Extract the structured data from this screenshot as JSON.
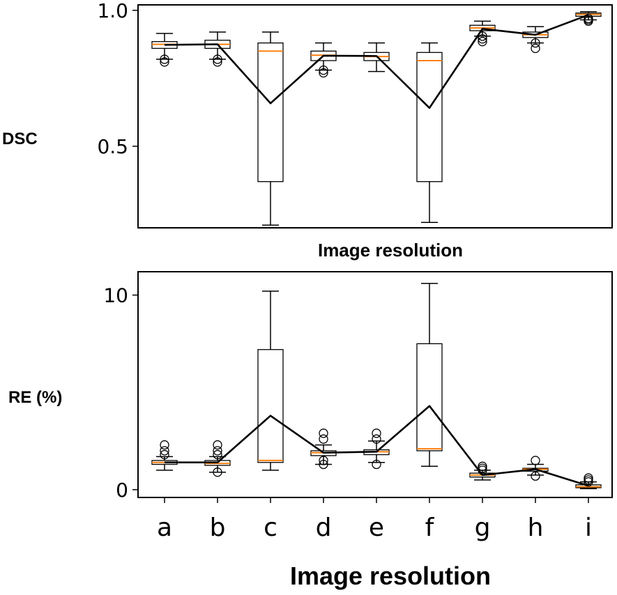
{
  "chart_data": [
    {
      "type": "box",
      "ylabel": "DSC",
      "xlabel": "Image resolution",
      "categories": [
        "a",
        "b",
        "c",
        "d",
        "e",
        "f",
        "g",
        "h",
        "i"
      ],
      "ylim": [
        0.2,
        1.02
      ],
      "yticks": [
        0.5,
        1.0
      ],
      "ytick_labels": [
        "0.5",
        "1.0"
      ],
      "show_xticks": false,
      "boxes": [
        {
          "whisker_low": 0.82,
          "q1": 0.86,
          "median": 0.875,
          "q3": 0.885,
          "whisker_high": 0.915,
          "outliers": [
            0.81,
            0.82
          ]
        },
        {
          "whisker_low": 0.82,
          "q1": 0.86,
          "median": 0.875,
          "q3": 0.89,
          "whisker_high": 0.92,
          "outliers": [
            0.81,
            0.82
          ]
        },
        {
          "whisker_low": 0.21,
          "q1": 0.37,
          "median": 0.85,
          "q3": 0.88,
          "whisker_high": 0.92,
          "outliers": []
        },
        {
          "whisker_low": 0.78,
          "q1": 0.815,
          "median": 0.835,
          "q3": 0.85,
          "whisker_high": 0.88,
          "outliers": [
            0.77,
            0.78
          ]
        },
        {
          "whisker_low": 0.775,
          "q1": 0.815,
          "median": 0.83,
          "q3": 0.845,
          "whisker_high": 0.88,
          "outliers": []
        },
        {
          "whisker_low": 0.22,
          "q1": 0.37,
          "median": 0.815,
          "q3": 0.845,
          "whisker_high": 0.88,
          "outliers": []
        },
        {
          "whisker_low": 0.905,
          "q1": 0.925,
          "median": 0.935,
          "q3": 0.945,
          "whisker_high": 0.96,
          "outliers": [
            0.885,
            0.895,
            0.905
          ]
        },
        {
          "whisker_low": 0.88,
          "q1": 0.9,
          "median": 0.91,
          "q3": 0.92,
          "whisker_high": 0.94,
          "outliers": [
            0.86,
            0.88
          ]
        },
        {
          "whisker_low": 0.965,
          "q1": 0.978,
          "median": 0.985,
          "q3": 0.99,
          "whisker_high": 0.995,
          "outliers": [
            0.96,
            0.965,
            0.97
          ]
        }
      ],
      "mean_line": [
        0.873,
        0.875,
        0.658,
        0.833,
        0.832,
        0.641,
        0.932,
        0.91,
        0.983
      ]
    },
    {
      "type": "box",
      "ylabel": "RE (%)",
      "xlabel": "Image resolution",
      "categories": [
        "a",
        "b",
        "c",
        "d",
        "e",
        "f",
        "g",
        "h",
        "i"
      ],
      "ylim": [
        -0.4,
        11.2
      ],
      "yticks": [
        0,
        10
      ],
      "ytick_labels": [
        "0",
        "10"
      ],
      "show_xticks": true,
      "boxes": [
        {
          "whisker_low": 1.0,
          "q1": 1.3,
          "median": 1.4,
          "q3": 1.5,
          "whisker_high": 1.7,
          "outliers": [
            1.8,
            2.0,
            2.3
          ]
        },
        {
          "whisker_low": 0.9,
          "q1": 1.25,
          "median": 1.35,
          "q3": 1.5,
          "whisker_high": 1.7,
          "outliers": [
            0.9,
            1.8,
            2.0,
            2.3
          ]
        },
        {
          "whisker_low": 1.0,
          "q1": 1.4,
          "median": 1.5,
          "q3": 7.2,
          "whisker_high": 10.2,
          "outliers": []
        },
        {
          "whisker_low": 1.3,
          "q1": 1.75,
          "median": 1.9,
          "q3": 2.0,
          "whisker_high": 2.3,
          "outliers": [
            1.3,
            1.5,
            2.6,
            2.9
          ]
        },
        {
          "whisker_low": 1.4,
          "q1": 1.8,
          "median": 1.95,
          "q3": 2.05,
          "whisker_high": 2.5,
          "outliers": [
            1.3,
            2.6,
            2.9
          ]
        },
        {
          "whisker_low": 1.2,
          "q1": 2.0,
          "median": 2.1,
          "q3": 7.5,
          "whisker_high": 10.6,
          "outliers": []
        },
        {
          "whisker_low": 0.5,
          "q1": 0.65,
          "median": 0.75,
          "q3": 0.85,
          "whisker_high": 1.0,
          "outliers": [
            1.0,
            1.1,
            1.2
          ]
        },
        {
          "whisker_low": 0.75,
          "q1": 0.95,
          "median": 1.05,
          "q3": 1.1,
          "whisker_high": 1.3,
          "outliers": [
            0.7,
            1.5
          ]
        },
        {
          "whisker_low": 0.05,
          "q1": 0.1,
          "median": 0.15,
          "q3": 0.25,
          "whisker_high": 0.4,
          "outliers": [
            0.4,
            0.5,
            0.6
          ]
        }
      ],
      "mean_line": [
        1.4,
        1.4,
        3.8,
        1.9,
        1.95,
        4.3,
        0.75,
        1.05,
        0.2
      ]
    }
  ],
  "colors": {
    "median": "#ff7f0e",
    "line": "#000000",
    "frame": "#000000"
  }
}
